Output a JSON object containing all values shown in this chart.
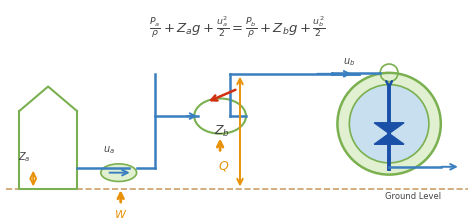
{
  "fig_width": 4.74,
  "fig_height": 2.24,
  "dpi": 100,
  "bg_color": "#ffffff",
  "equation": "$\\frac{P_a}{\\rho} + Z_a g + \\frac{u_a^2}{2} = \\frac{P_b}{\\rho} + Z_b g + \\frac{u_b^2}{2}$",
  "ground_color": "#c8a068",
  "pipe_color": "#3a7fc0",
  "arrow_orange": "#e8920a",
  "arrow_red": "#d03010",
  "green_color": "#7ab050",
  "blue_dark": "#1a50a8",
  "blue_fill": "#c8dff0",
  "green_fill": "#e0f0d0",
  "ground_label": "Ground Level",
  "text_color": "#444444"
}
